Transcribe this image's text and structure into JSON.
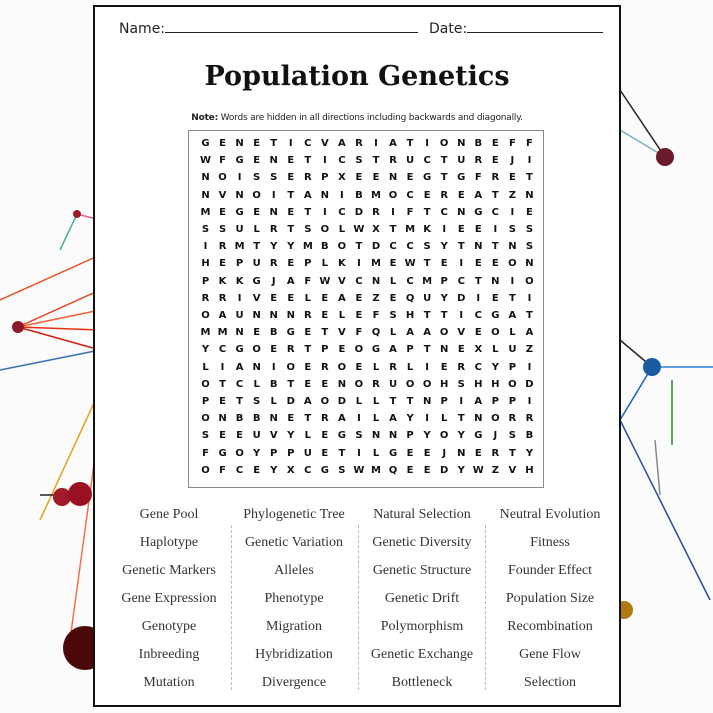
{
  "header": {
    "name_label": "Name:",
    "date_label": "Date:"
  },
  "title": "Population Genetics",
  "note": {
    "bold": "Note:",
    "text": " Words are hidden in all directions including backwards and diagonally."
  },
  "grid": [
    "GENETICVARIATIONBEFF",
    "WFGENETICSTRUCTUREJI",
    "NOISSERPXEENEGTGFRET",
    "NVNOITANIBMOCEREATZN",
    "MEGENETICDRIFTCNGCIE",
    "SSULRTSOLWXTMKIEEISS",
    "IRMTYYMBOTDCCSYTNTNS",
    "HEPUREPLKIMEWTEIEEON",
    "PKKGJAFWVCNLCMPCTNIO",
    "RRIVEELEAEZEQUYDIETI",
    "OAUNNNRELEFSHTTICGAT",
    "MMNEBGETVFQLAAOVEOLA",
    "YCGOERTPEOGAPTNEXLUZ",
    "LIANIOEROELRLIERCYPI",
    "OTCLBTEENORUOOHSHHOD",
    "PETSLDAODLLTTNPIAPPI",
    "ONBBNETRAILAYILTNORR",
    "SEEUVYLEGSNNPYOYGJSB",
    "FGOYPPUETILGEEJNERTY",
    "OFCEYXCGSWMQEEDYWZVH"
  ],
  "word_columns": [
    [
      "Gene Pool",
      "Haplotype",
      "Genetic Markers",
      "Gene Expression",
      "Genotype",
      "Inbreeding",
      "Mutation"
    ],
    [
      "Phylogenetic Tree",
      "Genetic Variation",
      "Alleles",
      "Phenotype",
      "Migration",
      "Hybridization",
      "Divergence"
    ],
    [
      "Natural Selection",
      "Genetic Diversity",
      "Genetic Structure",
      "Genetic Drift",
      "Polymorphism",
      "Genetic Exchange",
      "Bottleneck"
    ],
    [
      "Neutral Evolution",
      "Fitness",
      "Founder Effect",
      "Population Size",
      "Recombination",
      "Gene Flow",
      "Selection"
    ]
  ]
}
